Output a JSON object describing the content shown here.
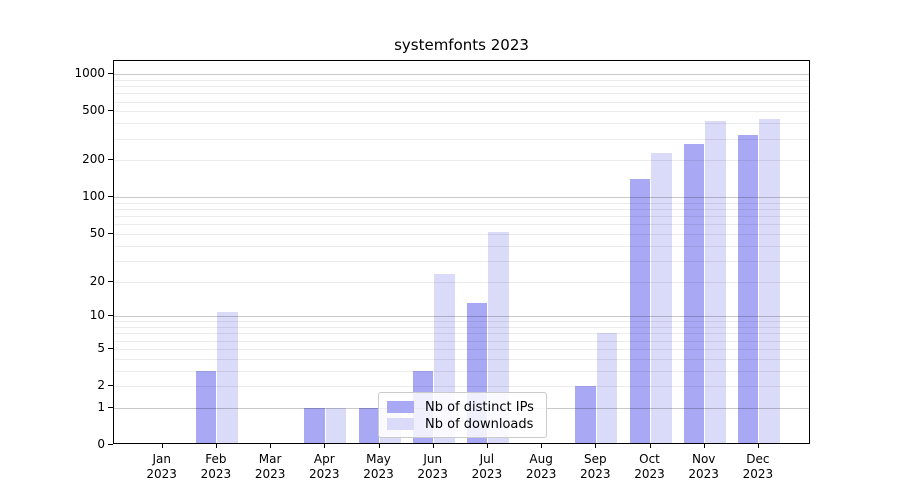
{
  "chart_data": {
    "type": "bar",
    "title": "systemfonts 2023",
    "categories": [
      "Jan 2023",
      "Feb 2023",
      "Mar 2023",
      "Apr 2023",
      "May 2023",
      "Jun 2023",
      "Jul 2023",
      "Aug 2023",
      "Sep 2023",
      "Oct 2023",
      "Nov 2023",
      "Dec 2023"
    ],
    "series": [
      {
        "name": "Nb of distinct IPs",
        "key": "distinct-ips",
        "color": "#a8a8f4",
        "values": [
          0,
          3,
          0,
          1,
          1,
          3,
          13,
          0,
          2,
          140,
          270,
          320
        ]
      },
      {
        "name": "Nb of downloads",
        "key": "downloads",
        "color": "#dadaf9",
        "values": [
          0,
          11,
          0,
          1,
          1,
          23,
          52,
          0,
          7,
          230,
          420,
          430
        ]
      }
    ],
    "xlabel": "",
    "ylabel": "",
    "yscale": "log1p",
    "ylim": [
      0,
      1280
    ],
    "y_tick_values": [
      1000,
      500,
      200,
      100,
      50,
      20,
      10,
      5,
      2,
      1,
      0
    ],
    "y_major_gridlines": [
      1,
      10,
      100,
      1000
    ],
    "y_minor_gridlines": [
      2,
      3,
      4,
      5,
      6,
      7,
      8,
      9,
      20,
      30,
      40,
      50,
      60,
      70,
      80,
      90,
      200,
      300,
      400,
      500,
      600,
      700,
      800,
      900
    ],
    "grid": "on",
    "legend_position": "inside-lower-center"
  },
  "colors": {
    "spine": "#000000",
    "text": "#000000",
    "legend_border": "#cbcbcb"
  }
}
